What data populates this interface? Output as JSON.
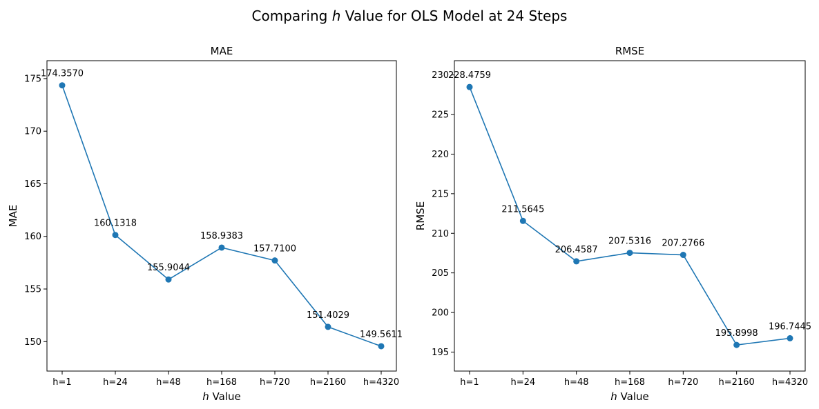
{
  "suptitle": {
    "prefix": "Comparing ",
    "var": "h",
    "suffix": " Value for OLS Model at 24 Steps"
  },
  "xlabel": {
    "var": "h",
    "text": " Value"
  },
  "style": {
    "line_color": "#1f77b4",
    "marker": "circle"
  },
  "chart_data": [
    {
      "type": "line",
      "title": "MAE",
      "ylabel": "MAE",
      "categories": [
        "h=1",
        "h=24",
        "h=48",
        "h=168",
        "h=720",
        "h=2160",
        "h=4320"
      ],
      "values": [
        174.357,
        160.1318,
        155.9044,
        158.9383,
        157.71,
        151.4029,
        149.5611
      ],
      "data_labels": [
        "174.3570",
        "160.1318",
        "155.9044",
        "158.9383",
        "157.7100",
        "151.4029",
        "149.5611"
      ],
      "ylim": [
        147.2,
        176.7
      ],
      "yticks": [
        150,
        155,
        160,
        165,
        170,
        175
      ],
      "grid": false,
      "legend": false
    },
    {
      "type": "line",
      "title": "RMSE",
      "ylabel": "RMSE",
      "categories": [
        "h=1",
        "h=24",
        "h=48",
        "h=168",
        "h=720",
        "h=2160",
        "h=4320"
      ],
      "values": [
        228.4759,
        211.5645,
        206.4587,
        207.5316,
        207.2766,
        195.8998,
        196.7445
      ],
      "data_labels": [
        "228.4759",
        "211.5645",
        "206.4587",
        "207.5316",
        "207.2766",
        "195.8998",
        "196.7445"
      ],
      "ylim": [
        192.6,
        231.8
      ],
      "yticks": [
        195,
        200,
        205,
        210,
        215,
        220,
        225,
        230
      ],
      "grid": false,
      "legend": false
    }
  ]
}
